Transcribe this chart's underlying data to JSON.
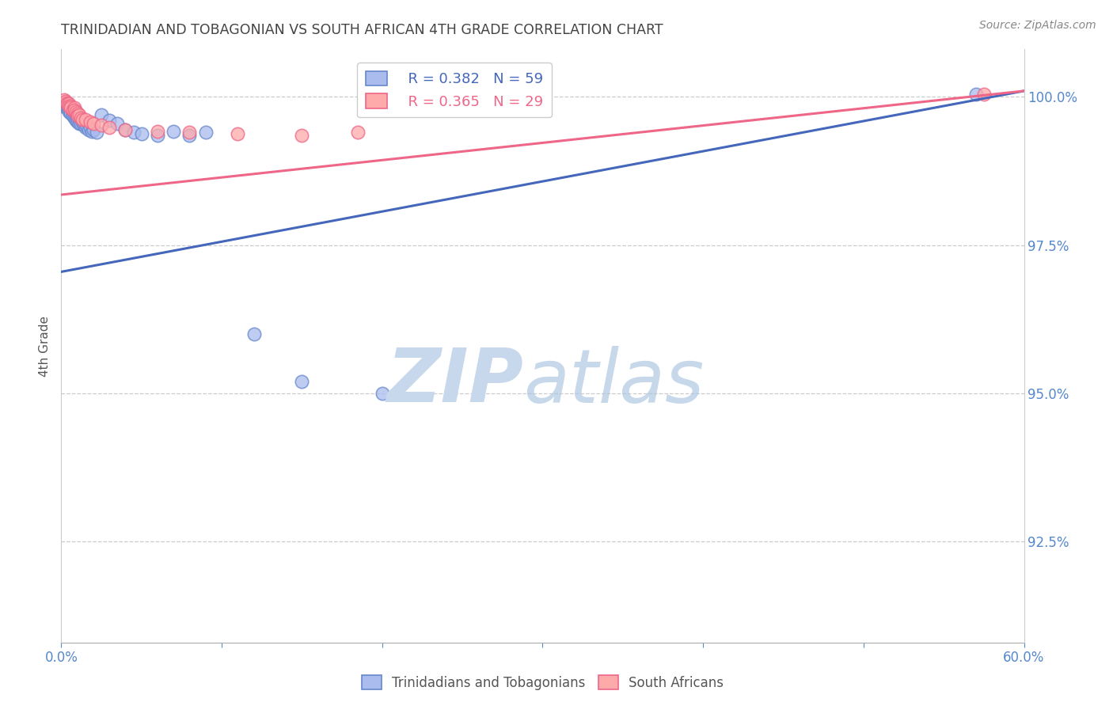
{
  "title": "TRINIDADIAN AND TOBAGONIAN VS SOUTH AFRICAN 4TH GRADE CORRELATION CHART",
  "source": "Source: ZipAtlas.com",
  "ylabel": "4th Grade",
  "legend_blue_label": "Trinidadians and Tobagonians",
  "legend_pink_label": "South Africans",
  "R_blue": 0.382,
  "N_blue": 59,
  "R_pink": 0.365,
  "N_pink": 29,
  "blue_fill": "#AABBEE",
  "blue_edge": "#6688CC",
  "pink_fill": "#FFAAAA",
  "pink_edge": "#EE6688",
  "blue_line": "#4466BB",
  "pink_line": "#EE6688",
  "axis_label_color": "#5588CC",
  "grid_color": "#CCCCCC",
  "title_color": "#444444",
  "source_color": "#888888",
  "xlim": [
    0.0,
    0.6
  ],
  "ylim": [
    0.908,
    1.008
  ],
  "yticks": [
    1.0,
    0.975,
    0.95,
    0.925
  ],
  "ytick_labels": [
    "100.0%",
    "97.5%",
    "95.0%",
    "92.5%"
  ],
  "blue_line_x0": 0.0,
  "blue_line_y0": 0.9705,
  "blue_line_x1": 0.6,
  "blue_line_y1": 1.001,
  "pink_line_x0": 0.0,
  "pink_line_y0": 0.9835,
  "pink_line_x1": 0.6,
  "pink_line_y1": 1.001,
  "blue_x": [
    0.001,
    0.002,
    0.002,
    0.003,
    0.003,
    0.003,
    0.004,
    0.004,
    0.004,
    0.004,
    0.005,
    0.005,
    0.005,
    0.005,
    0.005,
    0.006,
    0.006,
    0.006,
    0.007,
    0.007,
    0.007,
    0.007,
    0.008,
    0.008,
    0.008,
    0.009,
    0.009,
    0.009,
    0.01,
    0.01,
    0.01,
    0.011,
    0.011,
    0.012,
    0.012,
    0.013,
    0.014,
    0.015,
    0.015,
    0.016,
    0.017,
    0.018,
    0.019,
    0.02,
    0.022,
    0.025,
    0.03,
    0.035,
    0.04,
    0.045,
    0.05,
    0.06,
    0.07,
    0.08,
    0.09,
    0.12,
    0.15,
    0.2,
    0.57
  ],
  "blue_y": [
    0.9985,
    0.9988,
    0.999,
    0.999,
    0.9988,
    0.9985,
    0.999,
    0.9988,
    0.9985,
    0.9982,
    0.9985,
    0.9982,
    0.998,
    0.9978,
    0.9975,
    0.9978,
    0.9975,
    0.9972,
    0.9978,
    0.9975,
    0.997,
    0.9968,
    0.9975,
    0.997,
    0.9965,
    0.997,
    0.9965,
    0.996,
    0.9968,
    0.9962,
    0.9958,
    0.996,
    0.9955,
    0.996,
    0.9955,
    0.9958,
    0.9952,
    0.9955,
    0.9948,
    0.995,
    0.9945,
    0.9948,
    0.9942,
    0.9945,
    0.994,
    0.997,
    0.996,
    0.9955,
    0.9945,
    0.994,
    0.9938,
    0.9935,
    0.9942,
    0.9935,
    0.994,
    0.96,
    0.952,
    0.95,
    1.0005
  ],
  "pink_x": [
    0.002,
    0.003,
    0.004,
    0.004,
    0.005,
    0.005,
    0.006,
    0.006,
    0.007,
    0.008,
    0.008,
    0.009,
    0.01,
    0.01,
    0.011,
    0.012,
    0.013,
    0.015,
    0.018,
    0.02,
    0.025,
    0.03,
    0.04,
    0.06,
    0.08,
    0.11,
    0.15,
    0.185,
    0.575
  ],
  "pink_y": [
    0.9995,
    0.9992,
    0.999,
    0.9988,
    0.9988,
    0.9985,
    0.9985,
    0.9982,
    0.9978,
    0.9982,
    0.9978,
    0.9975,
    0.9972,
    0.9968,
    0.997,
    0.9965,
    0.9962,
    0.9962,
    0.9958,
    0.9955,
    0.9952,
    0.9948,
    0.9945,
    0.9942,
    0.994,
    0.9938,
    0.9935,
    0.994,
    1.0005
  ]
}
